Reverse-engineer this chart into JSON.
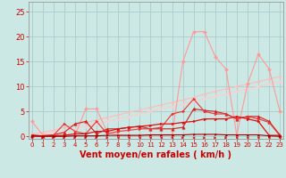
{
  "x": [
    0,
    1,
    2,
    3,
    4,
    5,
    6,
    7,
    8,
    9,
    10,
    11,
    12,
    13,
    14,
    15,
    16,
    17,
    18,
    19,
    20,
    21,
    22,
    23
  ],
  "bg_color": "#cce8e4",
  "grid_color": "#aacccc",
  "xlabel": "Vent moyen/en rafales ( km/h )",
  "ylabel_ticks": [
    0,
    5,
    10,
    15,
    20,
    25
  ],
  "xlim": [
    -0.3,
    23.3
  ],
  "ylim": [
    -0.5,
    27
  ],
  "lines": [
    {
      "y": [
        3.0,
        0.3,
        0.2,
        0.2,
        0.2,
        5.5,
        5.5,
        0.8,
        0.3,
        0.2,
        0.2,
        0.2,
        0.2,
        0.2,
        15.0,
        21.0,
        21.0,
        16.0,
        13.5,
        0.2,
        10.5,
        16.5,
        13.5,
        5.0
      ],
      "color": "#ff9999",
      "lw": 0.8,
      "marker": "D",
      "ms": 2.0,
      "zorder": 3
    },
    {
      "y": [
        0.5,
        0.8,
        1.2,
        1.8,
        2.3,
        2.8,
        3.3,
        3.8,
        4.3,
        4.8,
        5.3,
        5.8,
        6.3,
        6.8,
        7.3,
        7.8,
        8.5,
        9.0,
        9.5,
        10.0,
        10.5,
        11.0,
        11.5,
        12.0
      ],
      "color": "#ffbbbb",
      "lw": 0.8,
      "marker": "D",
      "ms": 1.5,
      "zorder": 2
    },
    {
      "y": [
        0.2,
        0.4,
        0.7,
        1.1,
        1.5,
        2.0,
        2.5,
        3.0,
        3.5,
        4.0,
        4.5,
        5.0,
        5.5,
        6.0,
        6.5,
        7.0,
        7.5,
        8.0,
        8.5,
        9.0,
        9.5,
        10.0,
        10.5,
        11.0
      ],
      "color": "#ffcccc",
      "lw": 0.8,
      "marker": "D",
      "ms": 1.5,
      "zorder": 2
    },
    {
      "y": [
        0.3,
        0.1,
        0.3,
        0.8,
        2.5,
        3.0,
        0.5,
        1.5,
        1.5,
        1.8,
        2.0,
        1.5,
        1.5,
        1.5,
        1.8,
        5.5,
        5.2,
        5.0,
        4.5,
        3.5,
        4.0,
        4.0,
        3.0,
        0.3
      ],
      "color": "#cc2222",
      "lw": 0.8,
      "marker": "^",
      "ms": 2.5,
      "zorder": 4
    },
    {
      "y": [
        0.1,
        0.1,
        0.2,
        2.5,
        1.0,
        0.5,
        3.0,
        0.5,
        1.0,
        1.2,
        1.5,
        1.5,
        1.8,
        4.5,
        5.0,
        7.5,
        5.0,
        4.5,
        4.5,
        3.5,
        4.0,
        3.5,
        2.8,
        0.1
      ],
      "color": "#ee3333",
      "lw": 0.8,
      "marker": ">",
      "ms": 2.0,
      "zorder": 4
    },
    {
      "y": [
        0.1,
        0.1,
        0.1,
        0.2,
        0.5,
        0.5,
        1.0,
        1.0,
        1.5,
        1.8,
        2.0,
        2.2,
        2.5,
        2.5,
        2.8,
        3.0,
        3.5,
        3.5,
        3.5,
        4.0,
        3.5,
        3.0,
        0.2,
        0.2
      ],
      "color": "#dd1111",
      "lw": 0.9,
      "marker": ">",
      "ms": 2.0,
      "zorder": 5
    },
    {
      "y": [
        0.05,
        0.0,
        0.0,
        0.0,
        0.1,
        0.1,
        0.1,
        0.2,
        0.2,
        0.2,
        0.2,
        0.3,
        0.3,
        0.3,
        0.3,
        0.4,
        0.4,
        0.4,
        0.3,
        0.3,
        0.3,
        0.3,
        0.1,
        0.0
      ],
      "color": "#990000",
      "lw": 0.8,
      "marker": ">",
      "ms": 1.5,
      "zorder": 6
    }
  ],
  "arrows": [
    {
      "x": 0,
      "dir": -1
    },
    {
      "x": 1,
      "dir": 1
    },
    {
      "x": 2,
      "dir": 1
    },
    {
      "x": 3,
      "dir": 1
    },
    {
      "x": 4,
      "dir": 1
    },
    {
      "x": 5,
      "dir": 1
    },
    {
      "x": 6,
      "dir": 1
    },
    {
      "x": 7,
      "dir": 1
    },
    {
      "x": 8,
      "dir": -1
    },
    {
      "x": 9,
      "dir": -1
    },
    {
      "x": 10,
      "dir": -1
    },
    {
      "x": 11,
      "dir": -1
    },
    {
      "x": 12,
      "dir": -1
    },
    {
      "x": 13,
      "dir": -1
    },
    {
      "x": 14,
      "dir": 1
    },
    {
      "x": 15,
      "dir": -1
    },
    {
      "x": 16,
      "dir": 1
    },
    {
      "x": 17,
      "dir": 1
    },
    {
      "x": 18,
      "dir": 1
    },
    {
      "x": 19,
      "dir": -1
    },
    {
      "x": 20,
      "dir": -1
    },
    {
      "x": 21,
      "dir": -1
    },
    {
      "x": 22,
      "dir": -1
    },
    {
      "x": 23,
      "dir": -1
    }
  ],
  "tick_color": "#cc0000",
  "axis_label_color": "#cc0000",
  "axis_label_fontsize": 7,
  "tick_fontsize": 5,
  "ytick_fontsize": 6
}
